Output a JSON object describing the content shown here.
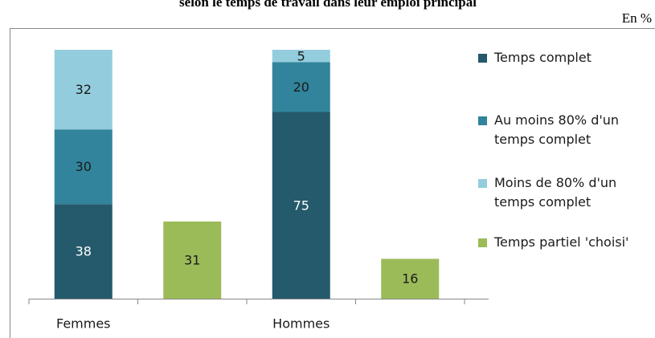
{
  "chart_data": {
    "type": "bar",
    "title": "selon le temps de travail dans leur emploi principal",
    "unit_label": "En %",
    "categories": [
      "Femmes",
      "Hommes"
    ],
    "ylim": [
      0,
      100
    ],
    "series": [
      {
        "name": "Temps complet",
        "color": "#245a6b",
        "label_color": "#ffffff",
        "stacked": true,
        "values": [
          38,
          75
        ]
      },
      {
        "name": "Au moins 80% d'un temps complet",
        "color": "#31849b",
        "label_color": "#1a1a1a",
        "stacked": true,
        "values": [
          30,
          20
        ]
      },
      {
        "name": "Moins de 80% d'un temps complet",
        "color": "#93cddd",
        "label_color": "#1a1a1a",
        "stacked": true,
        "values": [
          32,
          5
        ]
      },
      {
        "name": "Temps partiel 'choisi'",
        "color": "#9bbb59",
        "label_color": "#1a1a1a",
        "stacked": false,
        "values": [
          31,
          16
        ]
      }
    ]
  }
}
